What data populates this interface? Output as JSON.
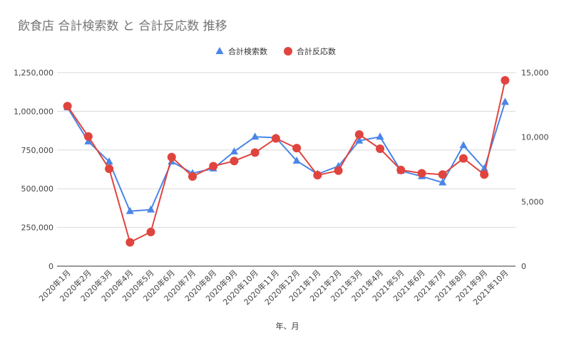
{
  "chart_data": {
    "type": "line",
    "title": "飲食店 合計検索数 と 合計反応数 推移",
    "xlabel": "年、月",
    "ylabel": "",
    "ylabel_right": "",
    "categories": [
      "2020年1月",
      "2020年2月",
      "2020年3月",
      "2020年4月",
      "2020年5月",
      "2020年6月",
      "2020年7月",
      "2020年8月",
      "2020年9月",
      "2020年10月",
      "2020年11月",
      "2020年12月",
      "2021年1月",
      "2021年2月",
      "2021年3月",
      "2021年4月",
      "2021年5月",
      "2021年6月",
      "2021年7月",
      "2021年8月",
      "2021年9月",
      "2021年10月"
    ],
    "ylim": [
      0,
      1250000
    ],
    "ylim_right": [
      0,
      15000
    ],
    "y_ticks": [
      "0",
      "250,000",
      "500,000",
      "750,000",
      "1,000,000",
      "1,250,000"
    ],
    "y_ticks_right": [
      "0",
      "5,000",
      "10,000",
      "15,000"
    ],
    "grid": true,
    "legend": "top-center",
    "series": [
      {
        "name": "合計検索数",
        "axis": "left",
        "marker": "triangle",
        "color": "#4a86e8",
        "values": [
          1025000,
          805000,
          675000,
          355000,
          365000,
          675000,
          600000,
          630000,
          740000,
          835000,
          830000,
          680000,
          595000,
          645000,
          810000,
          835000,
          615000,
          580000,
          540000,
          780000,
          630000,
          1060000
        ]
      },
      {
        "name": "合計反応数",
        "axis": "right",
        "marker": "circle",
        "color": "#e0443e",
        "values": [
          12400,
          10050,
          7550,
          1850,
          2650,
          8450,
          6950,
          7750,
          8150,
          8800,
          9900,
          9150,
          7050,
          7400,
          10200,
          9100,
          7450,
          7200,
          7100,
          8350,
          7100,
          14400
        ]
      }
    ]
  }
}
